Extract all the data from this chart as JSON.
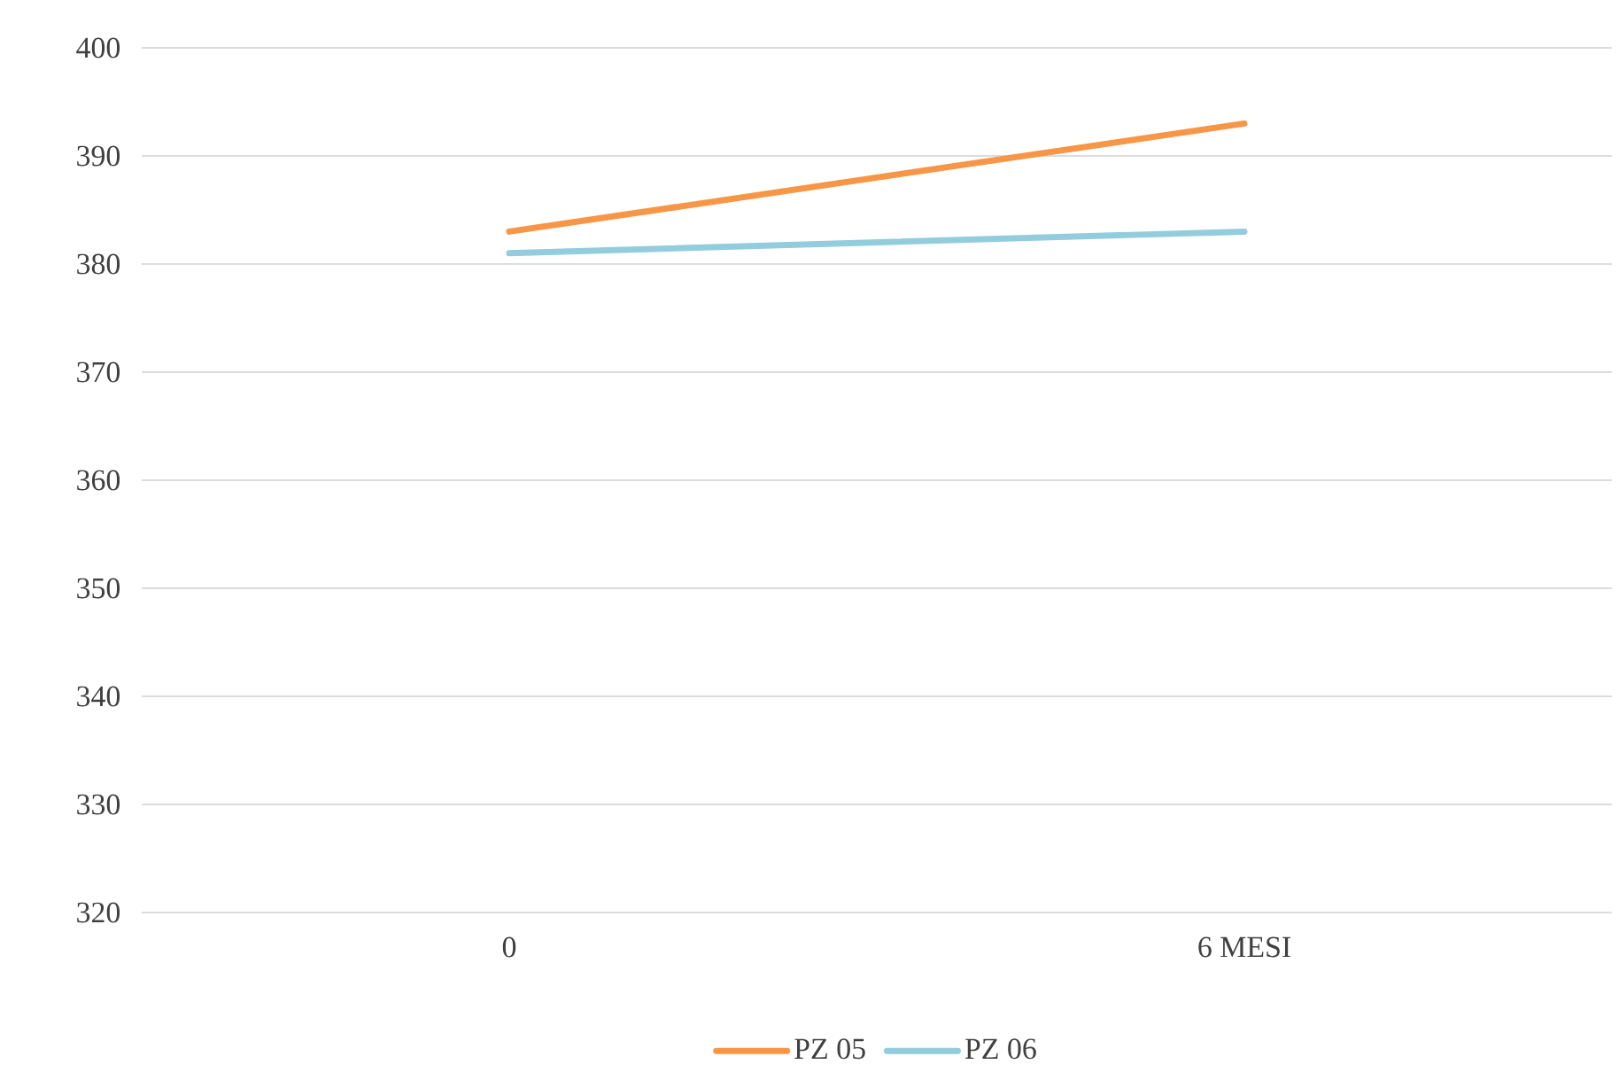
{
  "chart_data": {
    "type": "line",
    "categories": [
      "0",
      "6 MESI"
    ],
    "series": [
      {
        "name": "PZ 05",
        "color": "#f79646",
        "values": [
          383,
          393
        ]
      },
      {
        "name": "PZ 06",
        "color": "#93cddd",
        "values": [
          381,
          383
        ]
      }
    ],
    "ylim": [
      320,
      400
    ],
    "yticks": [
      320,
      330,
      340,
      350,
      360,
      370,
      380,
      390,
      400
    ],
    "grid": "y",
    "legend": "bottom"
  }
}
